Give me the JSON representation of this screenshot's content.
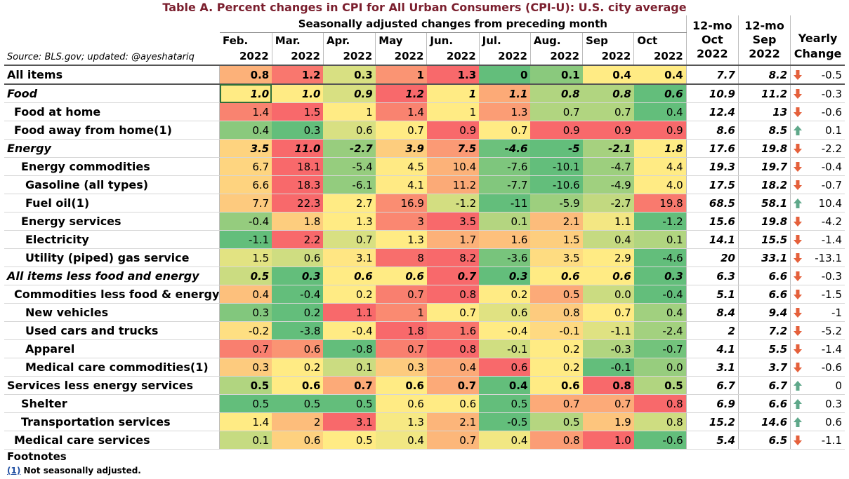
{
  "title": "Table A. Percent changes in CPI for All Urban Consumers (CPI-U): U.S. city average",
  "header": {
    "super": "Seasonally adjusted changes from preceding month",
    "source": "Source: BLS.gov; updated: @ayeshatariq",
    "months": [
      "Feb.",
      "Mar.",
      "Apr.",
      "May",
      "Jun.",
      "Jul.",
      "Aug.",
      "Sep",
      "Oct"
    ],
    "years": [
      "2022",
      "2022",
      "2022",
      "2022",
      "2022",
      "2022",
      "2022",
      "2022",
      "2022"
    ],
    "twelve_oct": [
      "12-mo",
      "Oct",
      "2022"
    ],
    "twelve_sep": [
      "12-mo",
      "Sep",
      "2022"
    ],
    "yearly": [
      "Yearly",
      "Change"
    ]
  },
  "colors": {
    "green": "#63be7b",
    "yellow": "#ffeb84",
    "red": "#f8696b",
    "arrow_up": "#5fa88a",
    "arrow_down": "#e5603b",
    "title": "#7b1f2e",
    "selected_cell_outline": "#2f6f3a"
  },
  "rows": [
    {
      "label": "All items",
      "monthly": [
        "0.8",
        "1.2",
        "0.3",
        "1",
        "1.3",
        "0",
        "0.1",
        "0.4",
        "0.4"
      ],
      "oct12": "7.7",
      "sep12": "8.2",
      "direction": "down",
      "yearly_change": "-0.5"
    },
    {
      "label": "Food",
      "monthly": [
        "1.0",
        "1.0",
        "0.9",
        "1.2",
        "1",
        "1.1",
        "0.8",
        "0.8",
        "0.6"
      ],
      "oct12": "10.9",
      "sep12": "11.2",
      "direction": "down",
      "yearly_change": "-0.3"
    },
    {
      "label": "Food at home",
      "monthly": [
        "1.4",
        "1.5",
        "1",
        "1.4",
        "1",
        "1.3",
        "0.7",
        "0.7",
        "0.4"
      ],
      "oct12": "12.4",
      "sep12": "13",
      "direction": "down",
      "yearly_change": "-0.6"
    },
    {
      "label": "Food away from home(1)",
      "monthly": [
        "0.4",
        "0.3",
        "0.6",
        "0.7",
        "0.9",
        "0.7",
        "0.9",
        "0.9",
        "0.9"
      ],
      "oct12": "8.6",
      "sep12": "8.5",
      "direction": "up",
      "yearly_change": "0.1"
    },
    {
      "label": "Energy",
      "monthly": [
        "3.5",
        "11.0",
        "-2.7",
        "3.9",
        "7.5",
        "-4.6",
        "-5",
        "-2.1",
        "1.8"
      ],
      "oct12": "17.6",
      "sep12": "19.8",
      "direction": "down",
      "yearly_change": "-2.2"
    },
    {
      "label": "Energy commodities",
      "monthly": [
        "6.7",
        "18.1",
        "-5.4",
        "4.5",
        "10.4",
        "-7.6",
        "-10.1",
        "-4.7",
        "4.4"
      ],
      "oct12": "19.3",
      "sep12": "19.7",
      "direction": "down",
      "yearly_change": "-0.4"
    },
    {
      "label": "Gasoline (all types)",
      "monthly": [
        "6.6",
        "18.3",
        "-6.1",
        "4.1",
        "11.2",
        "-7.7",
        "-10.6",
        "-4.9",
        "4.0"
      ],
      "oct12": "17.5",
      "sep12": "18.2",
      "direction": "down",
      "yearly_change": "-0.7"
    },
    {
      "label": "Fuel oil(1)",
      "monthly": [
        "7.7",
        "22.3",
        "2.7",
        "16.9",
        "-1.2",
        "-11",
        "-5.9",
        "-2.7",
        "19.8"
      ],
      "oct12": "68.5",
      "sep12": "58.1",
      "direction": "up",
      "yearly_change": "10.4"
    },
    {
      "label": "Energy services",
      "monthly": [
        "-0.4",
        "1.8",
        "1.3",
        "3",
        "3.5",
        "0.1",
        "2.1",
        "1.1",
        "-1.2"
      ],
      "oct12": "15.6",
      "sep12": "19.8",
      "direction": "down",
      "yearly_change": "-4.2"
    },
    {
      "label": "Electricity",
      "monthly": [
        "-1.1",
        "2.2",
        "0.7",
        "1.3",
        "1.7",
        "1.6",
        "1.5",
        "0.4",
        "0.1"
      ],
      "oct12": "14.1",
      "sep12": "15.5",
      "direction": "down",
      "yearly_change": "-1.4"
    },
    {
      "label": "Utility (piped) gas service",
      "monthly": [
        "1.5",
        "0.6",
        "3.1",
        "8",
        "8.2",
        "-3.6",
        "3.5",
        "2.9",
        "-4.6"
      ],
      "oct12": "20",
      "sep12": "33.1",
      "direction": "down",
      "yearly_change": "-13.1"
    },
    {
      "label": "All items less food and energy",
      "monthly": [
        "0.5",
        "0.3",
        "0.6",
        "0.6",
        "0.7",
        "0.3",
        "0.6",
        "0.6",
        "0.3"
      ],
      "oct12": "6.3",
      "sep12": "6.6",
      "direction": "down",
      "yearly_change": "-0.3"
    },
    {
      "label": "Commodities less food & energy",
      "monthly": [
        "0.4",
        "-0.4",
        "0.2",
        "0.7",
        "0.8",
        "0.2",
        "0.5",
        "0.0",
        "-0.4"
      ],
      "oct12": "5.1",
      "sep12": "6.6",
      "direction": "down",
      "yearly_change": "-1.5"
    },
    {
      "label": "New vehicles",
      "monthly": [
        "0.3",
        "0.2",
        "1.1",
        "1",
        "0.7",
        "0.6",
        "0.8",
        "0.7",
        "0.4"
      ],
      "oct12": "8.4",
      "sep12": "9.4",
      "direction": "down",
      "yearly_change": "-1"
    },
    {
      "label": "Used cars and trucks",
      "monthly": [
        "-0.2",
        "-3.8",
        "-0.4",
        "1.8",
        "1.6",
        "-0.4",
        "-0.1",
        "-1.1",
        "-2.4"
      ],
      "oct12": "2",
      "sep12": "7.2",
      "direction": "down",
      "yearly_change": "-5.2"
    },
    {
      "label": "Apparel",
      "monthly": [
        "0.7",
        "0.6",
        "-0.8",
        "0.7",
        "0.8",
        "-0.1",
        "0.2",
        "-0.3",
        "-0.7"
      ],
      "oct12": "4.1",
      "sep12": "5.5",
      "direction": "down",
      "yearly_change": "-1.4"
    },
    {
      "label": "Medical care commodities(1)",
      "monthly": [
        "0.3",
        "0.2",
        "0.1",
        "0.3",
        "0.4",
        "0.6",
        "0.2",
        "-0.1",
        "0.0"
      ],
      "oct12": "3.1",
      "sep12": "3.7",
      "direction": "down",
      "yearly_change": "-0.6"
    },
    {
      "label": "Services less energy services",
      "monthly": [
        "0.5",
        "0.6",
        "0.7",
        "0.6",
        "0.7",
        "0.4",
        "0.6",
        "0.8",
        "0.5"
      ],
      "oct12": "6.7",
      "sep12": "6.7",
      "direction": "up",
      "yearly_change": "0"
    },
    {
      "label": "Shelter",
      "monthly": [
        "0.5",
        "0.5",
        "0.5",
        "0.6",
        "0.6",
        "0.5",
        "0.7",
        "0.7",
        "0.8"
      ],
      "oct12": "6.9",
      "sep12": "6.6",
      "direction": "up",
      "yearly_change": "0.3"
    },
    {
      "label": "Transportation services",
      "monthly": [
        "1.4",
        "2",
        "3.1",
        "1.3",
        "2.1",
        "-0.5",
        "0.5",
        "1.9",
        "0.8"
      ],
      "oct12": "15.2",
      "sep12": "14.6",
      "direction": "up",
      "yearly_change": "0.6"
    },
    {
      "label": "Medical care services",
      "monthly": [
        "0.1",
        "0.6",
        "0.5",
        "0.4",
        "0.7",
        "0.4",
        "0.8",
        "1.0",
        "-0.6"
      ],
      "oct12": "5.4",
      "sep12": "6.5",
      "direction": "down",
      "yearly_change": "-1.1"
    }
  ],
  "footnotes": {
    "title": "Footnotes",
    "ref": "(1)",
    "text": " Not seasonally adjusted."
  }
}
